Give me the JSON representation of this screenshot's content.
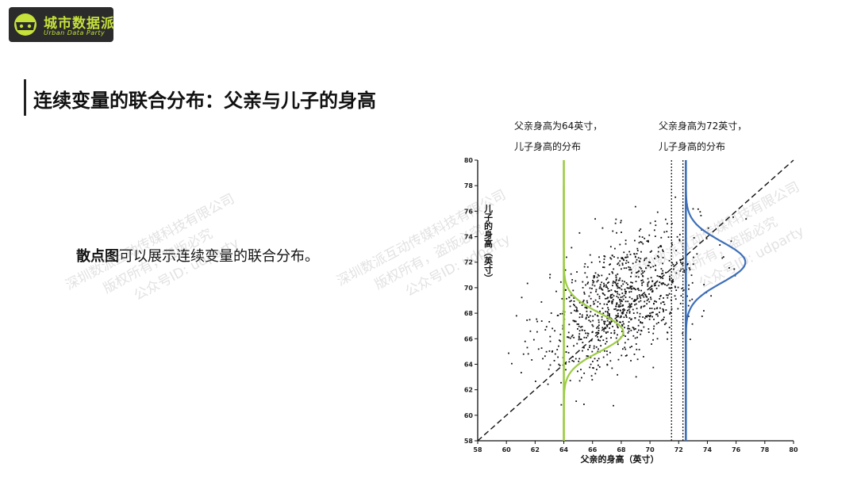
{
  "logo": {
    "name_cn": "城市数据派",
    "name_en": "Urban Data Party"
  },
  "slide": {
    "title": "连续变量的联合分布：父亲与儿子的身高",
    "desc_bold": "散点图",
    "desc_rest": "可以展示连续变量的联合分布。"
  },
  "watermark": {
    "line1": "深圳数派互动传媒科技有限公司",
    "line2": "版权所有，盗版必究",
    "line3": "公众号ID: udparty"
  },
  "annotations": {
    "left_line1": "父亲身高为64英寸，",
    "left_line2": "儿子身高的分布",
    "right_line1": "父亲身高为72英寸，",
    "right_line2": "儿子身高的分布"
  },
  "colors": {
    "logo_green": "#c5e13a",
    "green_curve": "#9dcb45",
    "blue_curve": "#3d6fb8",
    "points": "#111111"
  },
  "chart_data": {
    "type": "scatter",
    "xlabel": "父亲的身高（英寸）",
    "ylabel": "儿子的身高（英寸）",
    "xlim": [
      58,
      80
    ],
    "ylim": [
      58,
      80
    ],
    "x_ticks": [
      58,
      60,
      62,
      64,
      66,
      68,
      70,
      72,
      74,
      76,
      78,
      80
    ],
    "y_ticks": [
      58,
      60,
      62,
      64,
      66,
      68,
      70,
      72,
      74,
      76,
      78,
      80
    ],
    "scatter": {
      "n_points": 1000,
      "father_mean": 68,
      "father_sd": 2.7,
      "son_mean": 69,
      "son_sd": 2.8,
      "correlation": 0.5
    },
    "reference_lines": [
      {
        "type": "diagonal",
        "from": [
          58,
          58
        ],
        "to": [
          80,
          80
        ],
        "style": "dashed"
      },
      {
        "type": "vertical",
        "x": 71.5,
        "style": "dotted"
      },
      {
        "type": "vertical",
        "x": 72.3,
        "style": "dotted"
      }
    ],
    "conditional_distributions": [
      {
        "father_height": 64,
        "son_mean": 66.5,
        "son_sd": 1.5,
        "color": "#9dcb45"
      },
      {
        "father_height": 72.5,
        "son_mean": 72,
        "son_sd": 1.6,
        "color": "#3d6fb8"
      }
    ]
  }
}
